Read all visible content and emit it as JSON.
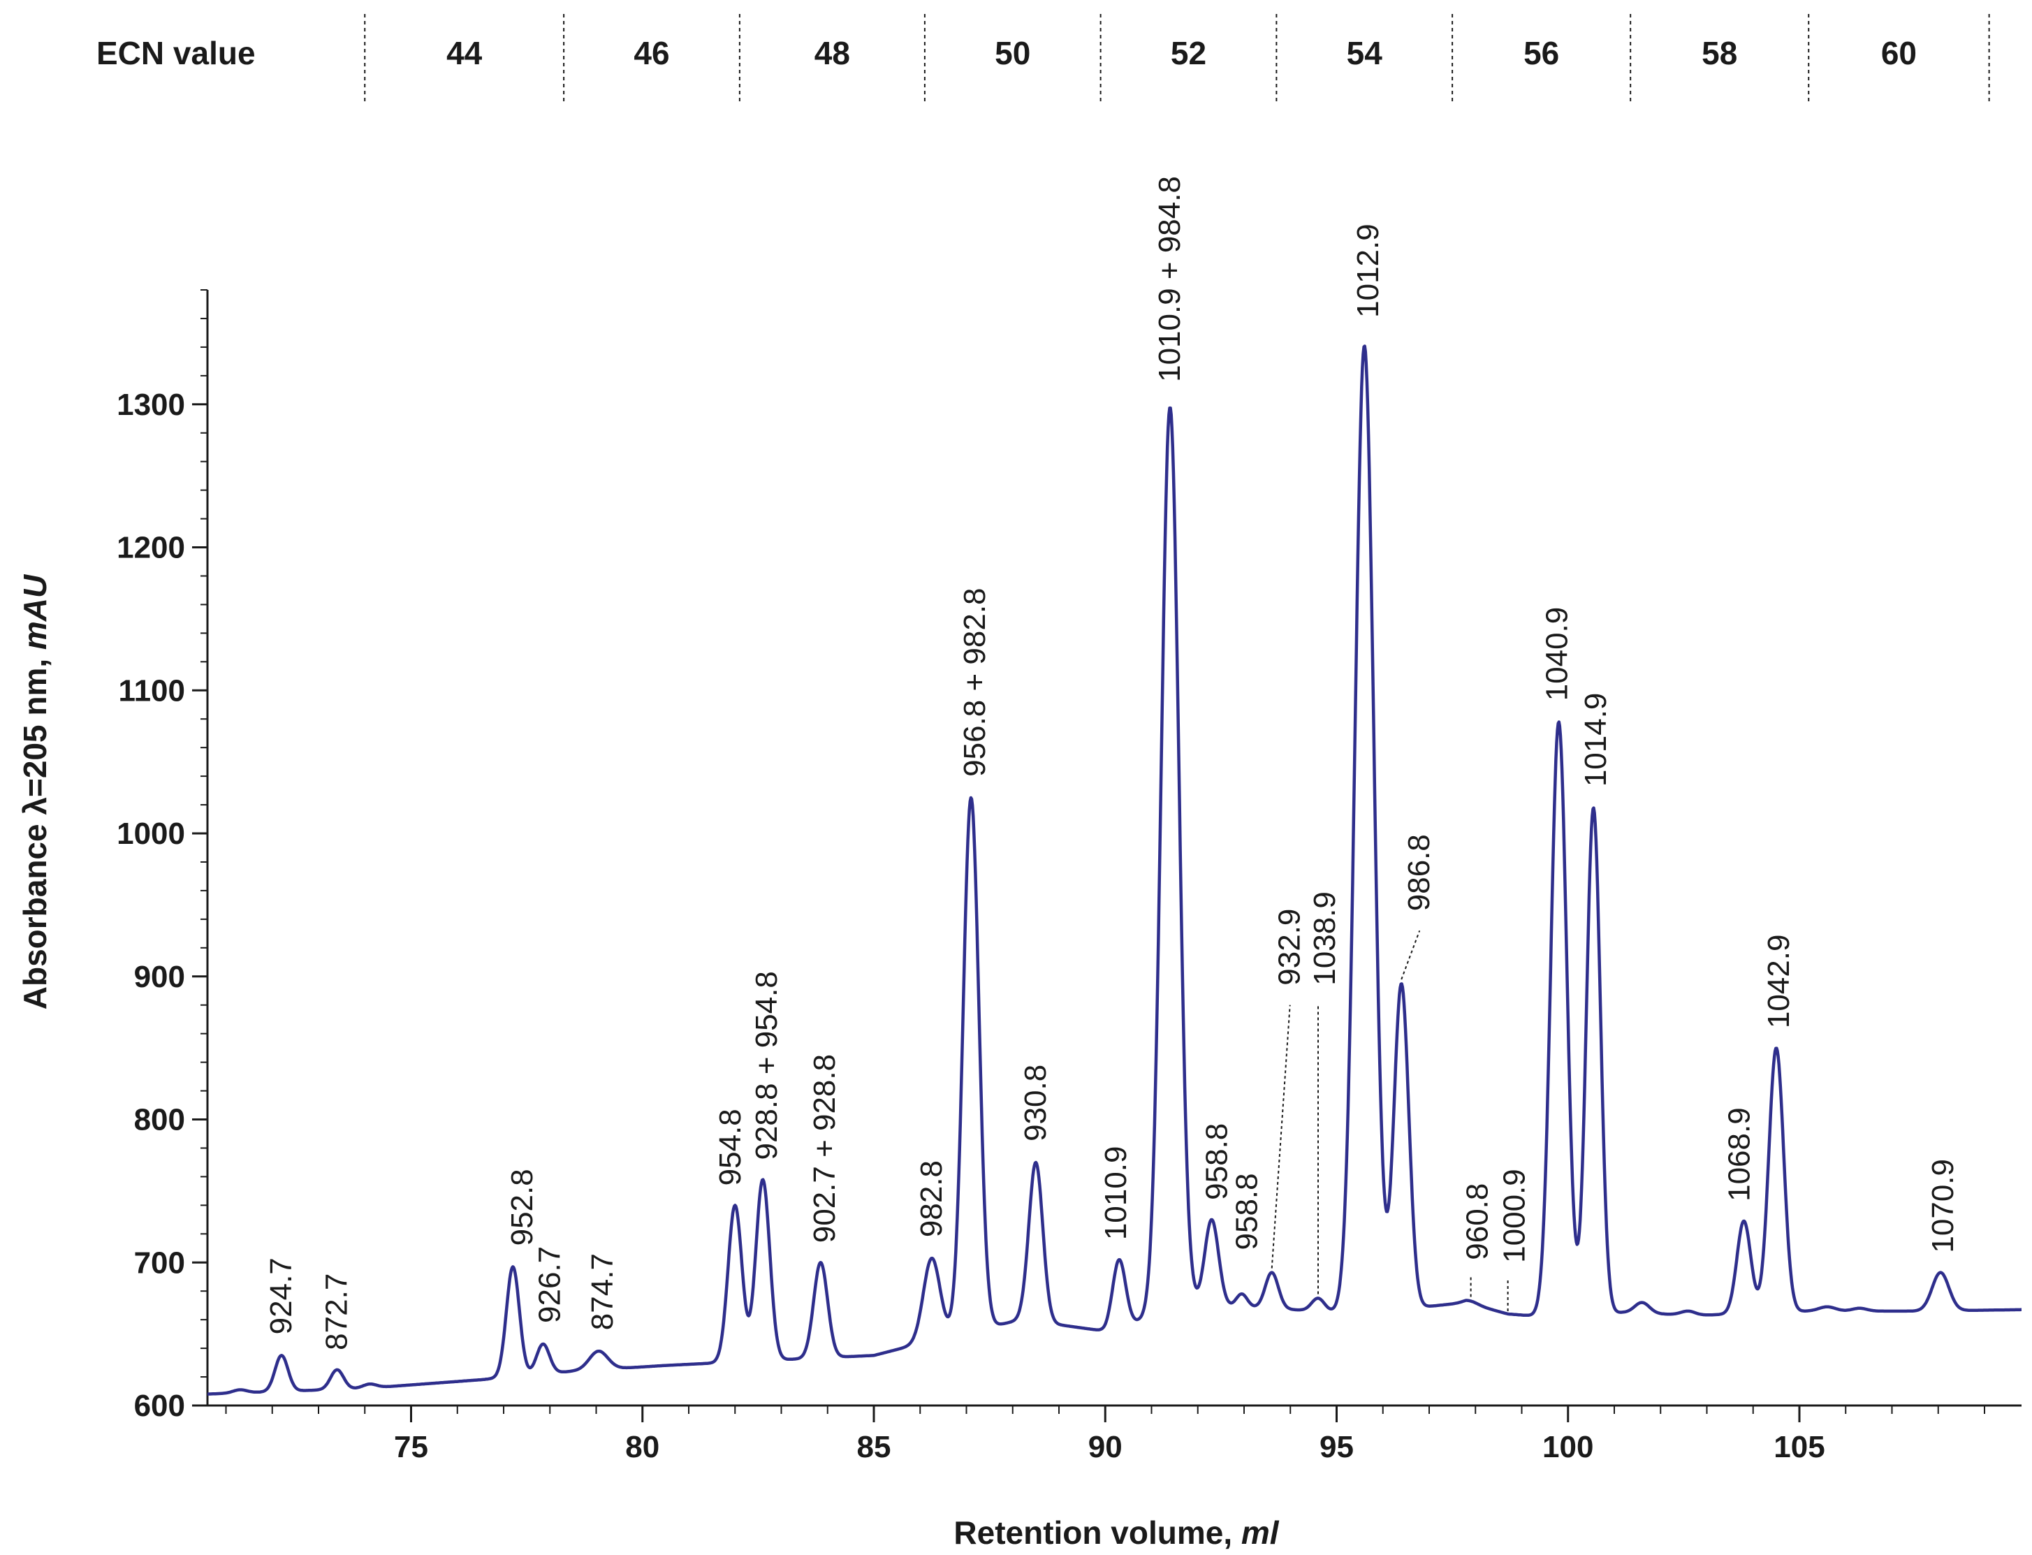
{
  "colors": {
    "trace": "#2e2e8c",
    "axis": "#1a1a1a",
    "background": "#ffffff"
  },
  "ecn_band": {
    "label": "ECN value",
    "groups": [
      {
        "value": "44",
        "from": 74.0,
        "to": 78.3
      },
      {
        "value": "46",
        "from": 78.3,
        "to": 82.1
      },
      {
        "value": "48",
        "from": 82.1,
        "to": 86.1
      },
      {
        "value": "50",
        "from": 86.1,
        "to": 89.9
      },
      {
        "value": "52",
        "from": 89.9,
        "to": 93.7
      },
      {
        "value": "54",
        "from": 93.7,
        "to": 97.5
      },
      {
        "value": "56",
        "from": 97.5,
        "to": 101.35
      },
      {
        "value": "58",
        "from": 101.35,
        "to": 105.2
      },
      {
        "value": "60",
        "from": 105.2,
        "to": 109.1
      }
    ]
  },
  "chart_data": {
    "type": "line",
    "title": "",
    "xlabel": {
      "text": "Retention volume, ",
      "italic": "ml"
    },
    "ylabel": {
      "text": "Absorbance  λ=205 nm, ",
      "italic": "mAU"
    },
    "xlim": [
      70.6,
      109.8
    ],
    "ylim": [
      600,
      1380
    ],
    "xticks": [
      75,
      80,
      85,
      90,
      95,
      100,
      105
    ],
    "yticks": [
      600,
      700,
      800,
      900,
      1000,
      1100,
      1200,
      1300
    ],
    "x_minor_step": 1,
    "y_minor_step": 20,
    "baseline": [
      [
        70.6,
        608
      ],
      [
        74.0,
        612
      ],
      [
        76.5,
        618
      ],
      [
        78.5,
        624
      ],
      [
        80.5,
        628
      ],
      [
        83.0,
        632
      ],
      [
        85.0,
        635
      ],
      [
        86.8,
        650
      ],
      [
        88.2,
        660
      ],
      [
        90.0,
        652
      ],
      [
        91.9,
        670
      ],
      [
        93.6,
        668
      ],
      [
        95.0,
        665
      ],
      [
        96.6,
        668
      ],
      [
        97.8,
        672
      ],
      [
        98.7,
        664
      ],
      [
        99.5,
        662
      ],
      [
        101.2,
        665
      ],
      [
        102.8,
        663
      ],
      [
        105.2,
        666
      ],
      [
        107.5,
        666
      ],
      [
        109.8,
        667
      ]
    ],
    "peaks": [
      {
        "label": "",
        "x": 71.3,
        "y": 611,
        "w": 0.15
      },
      {
        "label": "924.7",
        "x": 72.2,
        "y": 635,
        "w": 0.14
      },
      {
        "label": "872.7",
        "x": 73.4,
        "y": 625,
        "w": 0.14
      },
      {
        "label": "",
        "x": 74.1,
        "y": 615,
        "w": 0.15
      },
      {
        "label": "",
        "x": 75.5,
        "y": 614,
        "w": 0.15
      },
      {
        "label": "",
        "x": 76.1,
        "y": 617,
        "w": 0.12
      },
      {
        "label": "952.8",
        "x": 77.2,
        "y": 697,
        "w": 0.14
      },
      {
        "label": "926.7",
        "x": 77.85,
        "y": 643,
        "w": 0.14
      },
      {
        "label": "874.7",
        "x": 79.05,
        "y": 638,
        "w": 0.2
      },
      {
        "label": "",
        "x": 80.5,
        "y": 627,
        "w": 0.18
      },
      {
        "label": "954.8",
        "x": 82.0,
        "y": 740,
        "w": 0.15
      },
      {
        "label": "928.8 + 954.8",
        "x": 82.6,
        "y": 758,
        "w": 0.15
      },
      {
        "label": "902.7 + 928.8",
        "x": 83.85,
        "y": 700,
        "w": 0.15
      },
      {
        "label": "982.8",
        "x": 86.25,
        "y": 703,
        "w": 0.18
      },
      {
        "label": "956.8 + 982.8",
        "x": 87.1,
        "y": 1025,
        "w": 0.17
      },
      {
        "label": "930.8",
        "x": 88.5,
        "y": 770,
        "w": 0.15
      },
      {
        "label": "",
        "x": 89.3,
        "y": 654,
        "w": 0.15
      },
      {
        "label": "1010.9",
        "x": 90.3,
        "y": 702,
        "w": 0.14
      },
      {
        "label": "1010.9 + 984.8",
        "x": 91.4,
        "y": 1298,
        "w": 0.19
      },
      {
        "label": "958.8",
        "x": 92.3,
        "y": 730,
        "w": 0.15
      },
      {
        "label": "958.8",
        "x": 92.95,
        "y": 678,
        "w": 0.12
      },
      {
        "label": "932.9",
        "x": 93.6,
        "y": 693,
        "w": 0.14
      },
      {
        "label": "1038.9",
        "x": 94.6,
        "y": 675,
        "w": 0.14
      },
      {
        "label": "1012.9",
        "x": 95.6,
        "y": 1341,
        "w": 0.2
      },
      {
        "label": "986.8",
        "x": 96.4,
        "y": 895,
        "w": 0.16
      },
      {
        "label": "960.8",
        "x": 97.9,
        "y": 673,
        "w": 0.16
      },
      {
        "label": "1000.9",
        "x": 98.7,
        "y": 663,
        "w": 0.16
      },
      {
        "label": "1040.9",
        "x": 99.8,
        "y": 1078,
        "w": 0.17
      },
      {
        "label": "1014.9",
        "x": 100.55,
        "y": 1018,
        "w": 0.15
      },
      {
        "label": "",
        "x": 101.6,
        "y": 672,
        "w": 0.16
      },
      {
        "label": "",
        "x": 102.6,
        "y": 666,
        "w": 0.16
      },
      {
        "label": "1068.9",
        "x": 103.8,
        "y": 729,
        "w": 0.15
      },
      {
        "label": "1042.9",
        "x": 104.5,
        "y": 850,
        "w": 0.16
      },
      {
        "label": "",
        "x": 105.6,
        "y": 669,
        "w": 0.18
      },
      {
        "label": "",
        "x": 106.3,
        "y": 668,
        "w": 0.16
      },
      {
        "label": "1070.9",
        "x": 108.05,
        "y": 693,
        "w": 0.18
      }
    ]
  }
}
